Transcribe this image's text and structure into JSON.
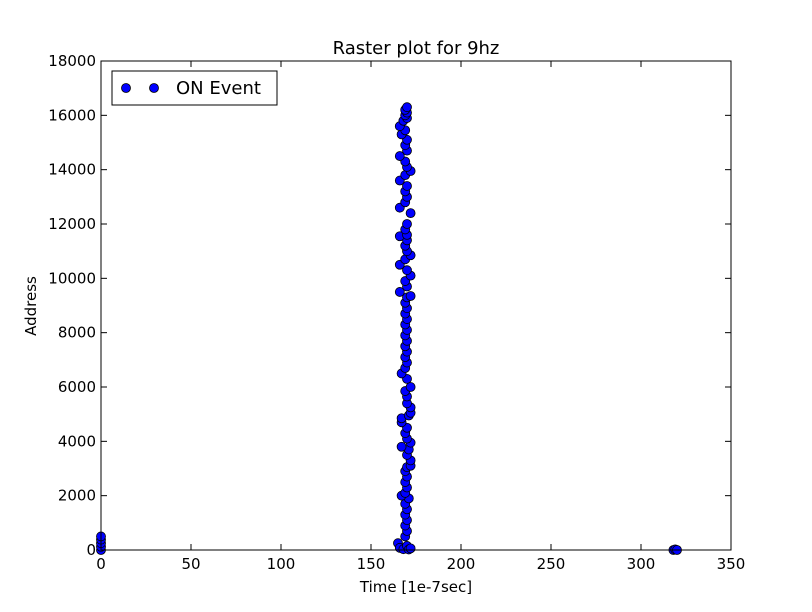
{
  "chart_data": {
    "type": "scatter",
    "title": "Raster plot for 9hz",
    "xlabel": "Time [1e-7sec]",
    "ylabel": "Address",
    "xlim": [
      0,
      350
    ],
    "ylim": [
      0,
      18000
    ],
    "xticks": [
      "0",
      "50",
      "100",
      "150",
      "200",
      "250",
      "300",
      "350"
    ],
    "yticks": [
      "0",
      "2000",
      "4000",
      "6000",
      "8000",
      "10000",
      "12000",
      "14000",
      "16000",
      "18000"
    ],
    "grid": false,
    "legend_position": "top-left",
    "marker_color": "#0000ff",
    "series": [
      {
        "name": "ON Event",
        "points": [
          [
            0,
            0
          ],
          [
            0,
            120
          ],
          [
            0,
            250
          ],
          [
            0,
            380
          ],
          [
            0,
            500
          ],
          [
            165,
            250
          ],
          [
            166,
            80
          ],
          [
            168,
            30
          ],
          [
            170,
            150
          ],
          [
            171,
            20
          ],
          [
            172,
            60
          ],
          [
            169,
            500
          ],
          [
            170,
            700
          ],
          [
            169,
            900
          ],
          [
            170,
            1100
          ],
          [
            169,
            1300
          ],
          [
            170,
            1500
          ],
          [
            169,
            1700
          ],
          [
            171,
            1900
          ],
          [
            167,
            2000
          ],
          [
            169,
            2100
          ],
          [
            170,
            2300
          ],
          [
            169,
            2500
          ],
          [
            170,
            2700
          ],
          [
            169,
            2900
          ],
          [
            170,
            3050
          ],
          [
            172,
            3100
          ],
          [
            172,
            3300
          ],
          [
            170,
            3500
          ],
          [
            171,
            3700
          ],
          [
            167,
            3800
          ],
          [
            172,
            3950
          ],
          [
            170,
            4100
          ],
          [
            169,
            4300
          ],
          [
            170,
            4500
          ],
          [
            167,
            4700
          ],
          [
            167,
            4850
          ],
          [
            171,
            4950
          ],
          [
            172,
            5050
          ],
          [
            172,
            5250
          ],
          [
            170,
            5400
          ],
          [
            170,
            5650
          ],
          [
            169,
            5850
          ],
          [
            172,
            6000
          ],
          [
            170,
            6300
          ],
          [
            167,
            6500
          ],
          [
            169,
            6700
          ],
          [
            170,
            6900
          ],
          [
            169,
            7100
          ],
          [
            170,
            7300
          ],
          [
            169,
            7500
          ],
          [
            170,
            7700
          ],
          [
            169,
            7900
          ],
          [
            170,
            8100
          ],
          [
            169,
            8300
          ],
          [
            170,
            8500
          ],
          [
            169,
            8700
          ],
          [
            170,
            8900
          ],
          [
            169,
            9100
          ],
          [
            170,
            9300
          ],
          [
            172,
            9350
          ],
          [
            166,
            9500
          ],
          [
            170,
            9700
          ],
          [
            169,
            9900
          ],
          [
            172,
            10100
          ],
          [
            170,
            10300
          ],
          [
            166,
            10500
          ],
          [
            169,
            10700
          ],
          [
            172,
            10850
          ],
          [
            170,
            11000
          ],
          [
            169,
            11200
          ],
          [
            170,
            11400
          ],
          [
            166,
            11550
          ],
          [
            170,
            11600
          ],
          [
            169,
            11800
          ],
          [
            170,
            12000
          ],
          [
            172,
            12400
          ],
          [
            166,
            12600
          ],
          [
            169,
            12800
          ],
          [
            170,
            13000
          ],
          [
            169,
            13200
          ],
          [
            170,
            13400
          ],
          [
            166,
            13600
          ],
          [
            169,
            13800
          ],
          [
            172,
            13950
          ],
          [
            170,
            14100
          ],
          [
            169,
            14300
          ],
          [
            166,
            14500
          ],
          [
            170,
            14700
          ],
          [
            169,
            14900
          ],
          [
            170,
            15100
          ],
          [
            167,
            15300
          ],
          [
            169,
            15450
          ],
          [
            166,
            15600
          ],
          [
            168,
            15800
          ],
          [
            170,
            15900
          ],
          [
            169,
            16000
          ],
          [
            170,
            16100
          ],
          [
            169,
            16200
          ],
          [
            170,
            16300
          ],
          [
            318,
            0
          ],
          [
            319,
            20
          ],
          [
            320,
            0
          ]
        ]
      }
    ]
  }
}
